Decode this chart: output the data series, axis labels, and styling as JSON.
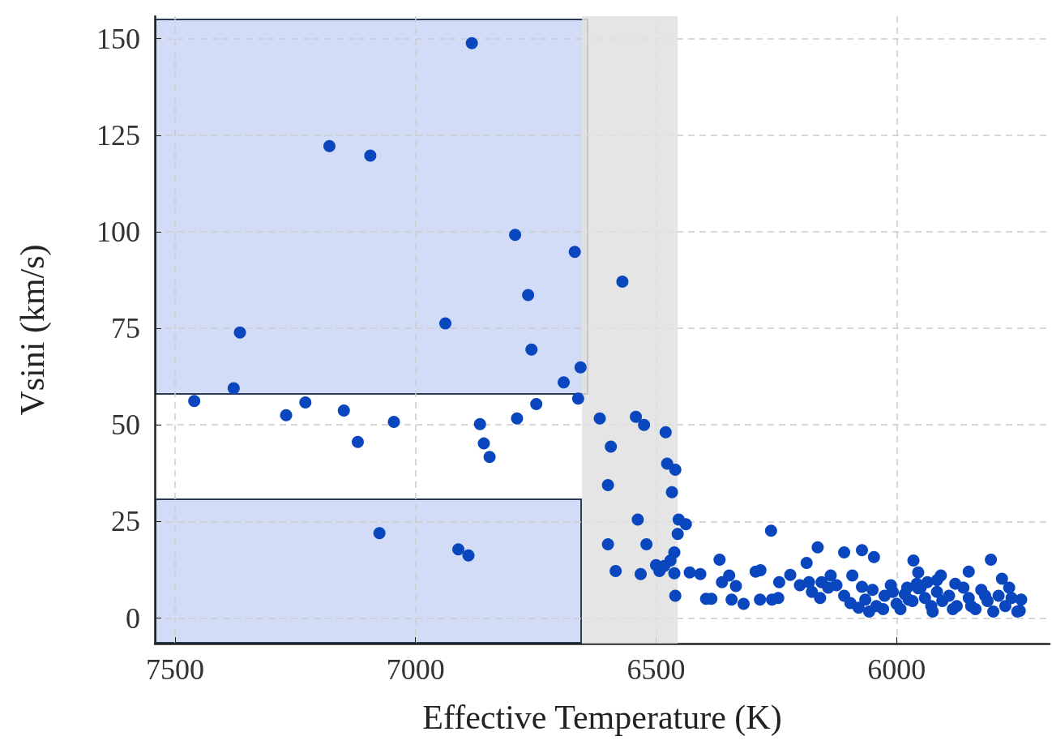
{
  "chart_data": {
    "type": "scatter",
    "xlabel": "Effective Temperature (K)",
    "ylabel": "Vsini (km/s)",
    "xlim": [
      7542,
      5682
    ],
    "ylim": [
      -6.6,
      155.8
    ],
    "xticks": [
      7500,
      7000,
      6500,
      6000
    ],
    "yticks": [
      0,
      25,
      50,
      75,
      100,
      125,
      150
    ],
    "grid": true,
    "marker": "circle",
    "bands": [
      {
        "axis": "x",
        "from": 6654,
        "to": 6455,
        "color": "#e0e0e0"
      }
    ],
    "series": [
      {
        "color": "#0a47bf",
        "x": [
          6883,
          7179,
          7094,
          6793,
          6669,
          6570,
          6766,
          6938,
          7365,
          6759,
          6657,
          6692,
          7378,
          6662,
          7460,
          7229,
          6749,
          7149,
          7269,
          6617,
          6789,
          6542,
          6525,
          6480,
          7045,
          6866,
          6858,
          7120,
          6594,
          6846,
          6477,
          6460,
          6600,
          6467,
          6453,
          6538,
          6438,
          6261,
          6455,
          7075,
          6911,
          6890,
          6600,
          6520,
          6462,
          6164,
          6109,
          6072,
          6047,
          6368,
          6187,
          5965,
          5804,
          6470,
          6483,
          6493,
          6500,
          6584,
          6532,
          6430,
          6408,
          6462,
          6293,
          6283,
          6221,
          6348,
          6363,
          6334,
          6244,
          6318,
          6385,
          6396,
          6343,
          6284,
          6259,
          6246,
          6460,
          6201,
          6182,
          6156,
          6137,
          6092,
          6072,
          6109,
          6096,
          6079,
          6065,
          6050,
          6042,
          6025,
          6012,
          6000,
          5983,
          5967,
          5955,
          5941,
          5928,
          5916,
          5905,
          5955,
          5950,
          5891,
          5875,
          5861,
          5850,
          5836,
          5824,
          5811,
          5799,
          5788,
          5774,
          5761,
          5749,
          5741,
          5744,
          5781,
          5850,
          5908,
          5916,
          5878,
          5936,
          5975,
          5992,
          6028,
          6057,
          6008,
          5958,
          5845,
          5883,
          5816,
          5766,
          6176,
          6142,
          6125,
          6159,
          5978,
          5925
        ],
        "values": [
          148.8,
          122.2,
          119.7,
          99.2,
          94.8,
          87.1,
          83.6,
          76.3,
          73.9,
          69.5,
          64.9,
          61,
          59.5,
          56.8,
          56.2,
          55.8,
          55.4,
          53.7,
          52.5,
          51.7,
          51.7,
          52.1,
          50,
          48.1,
          50.8,
          50.2,
          45.2,
          45.6,
          44.4,
          41.7,
          40,
          38.4,
          34.4,
          32.6,
          25.5,
          25.5,
          24.3,
          22.6,
          21.8,
          22,
          17.8,
          16.2,
          19.1,
          19.1,
          17,
          18.3,
          17,
          17.6,
          15.8,
          15.1,
          14.3,
          14.9,
          15.1,
          14.9,
          13.5,
          12.2,
          13.7,
          12.2,
          11.4,
          11.8,
          11.4,
          11.6,
          12,
          12.4,
          11.2,
          11,
          9.3,
          8.3,
          9.3,
          3.7,
          5,
          5,
          4.8,
          4.8,
          4.8,
          5.2,
          5.8,
          8.5,
          9.3,
          9.3,
          11,
          11,
          8.1,
          5.8,
          3.9,
          2.7,
          4.8,
          7.3,
          3.1,
          5.8,
          8.5,
          3.7,
          6.2,
          4.4,
          7.7,
          5.2,
          3.1,
          6.8,
          4.4,
          11.8,
          7.9,
          5.8,
          3.1,
          7.9,
          5.2,
          2.3,
          7.3,
          4.4,
          1.7,
          5.8,
          3.1,
          5.2,
          1.7,
          4.8,
          1.9,
          10.2,
          12,
          11,
          9.8,
          8.9,
          9.3,
          4.8,
          2.3,
          2.3,
          1.7,
          6.8,
          8.9,
          3.1,
          2.3,
          5.8,
          7.9,
          6.8,
          7.9,
          8.5,
          5.2,
          7.9,
          1.7
        ]
      }
    ]
  }
}
